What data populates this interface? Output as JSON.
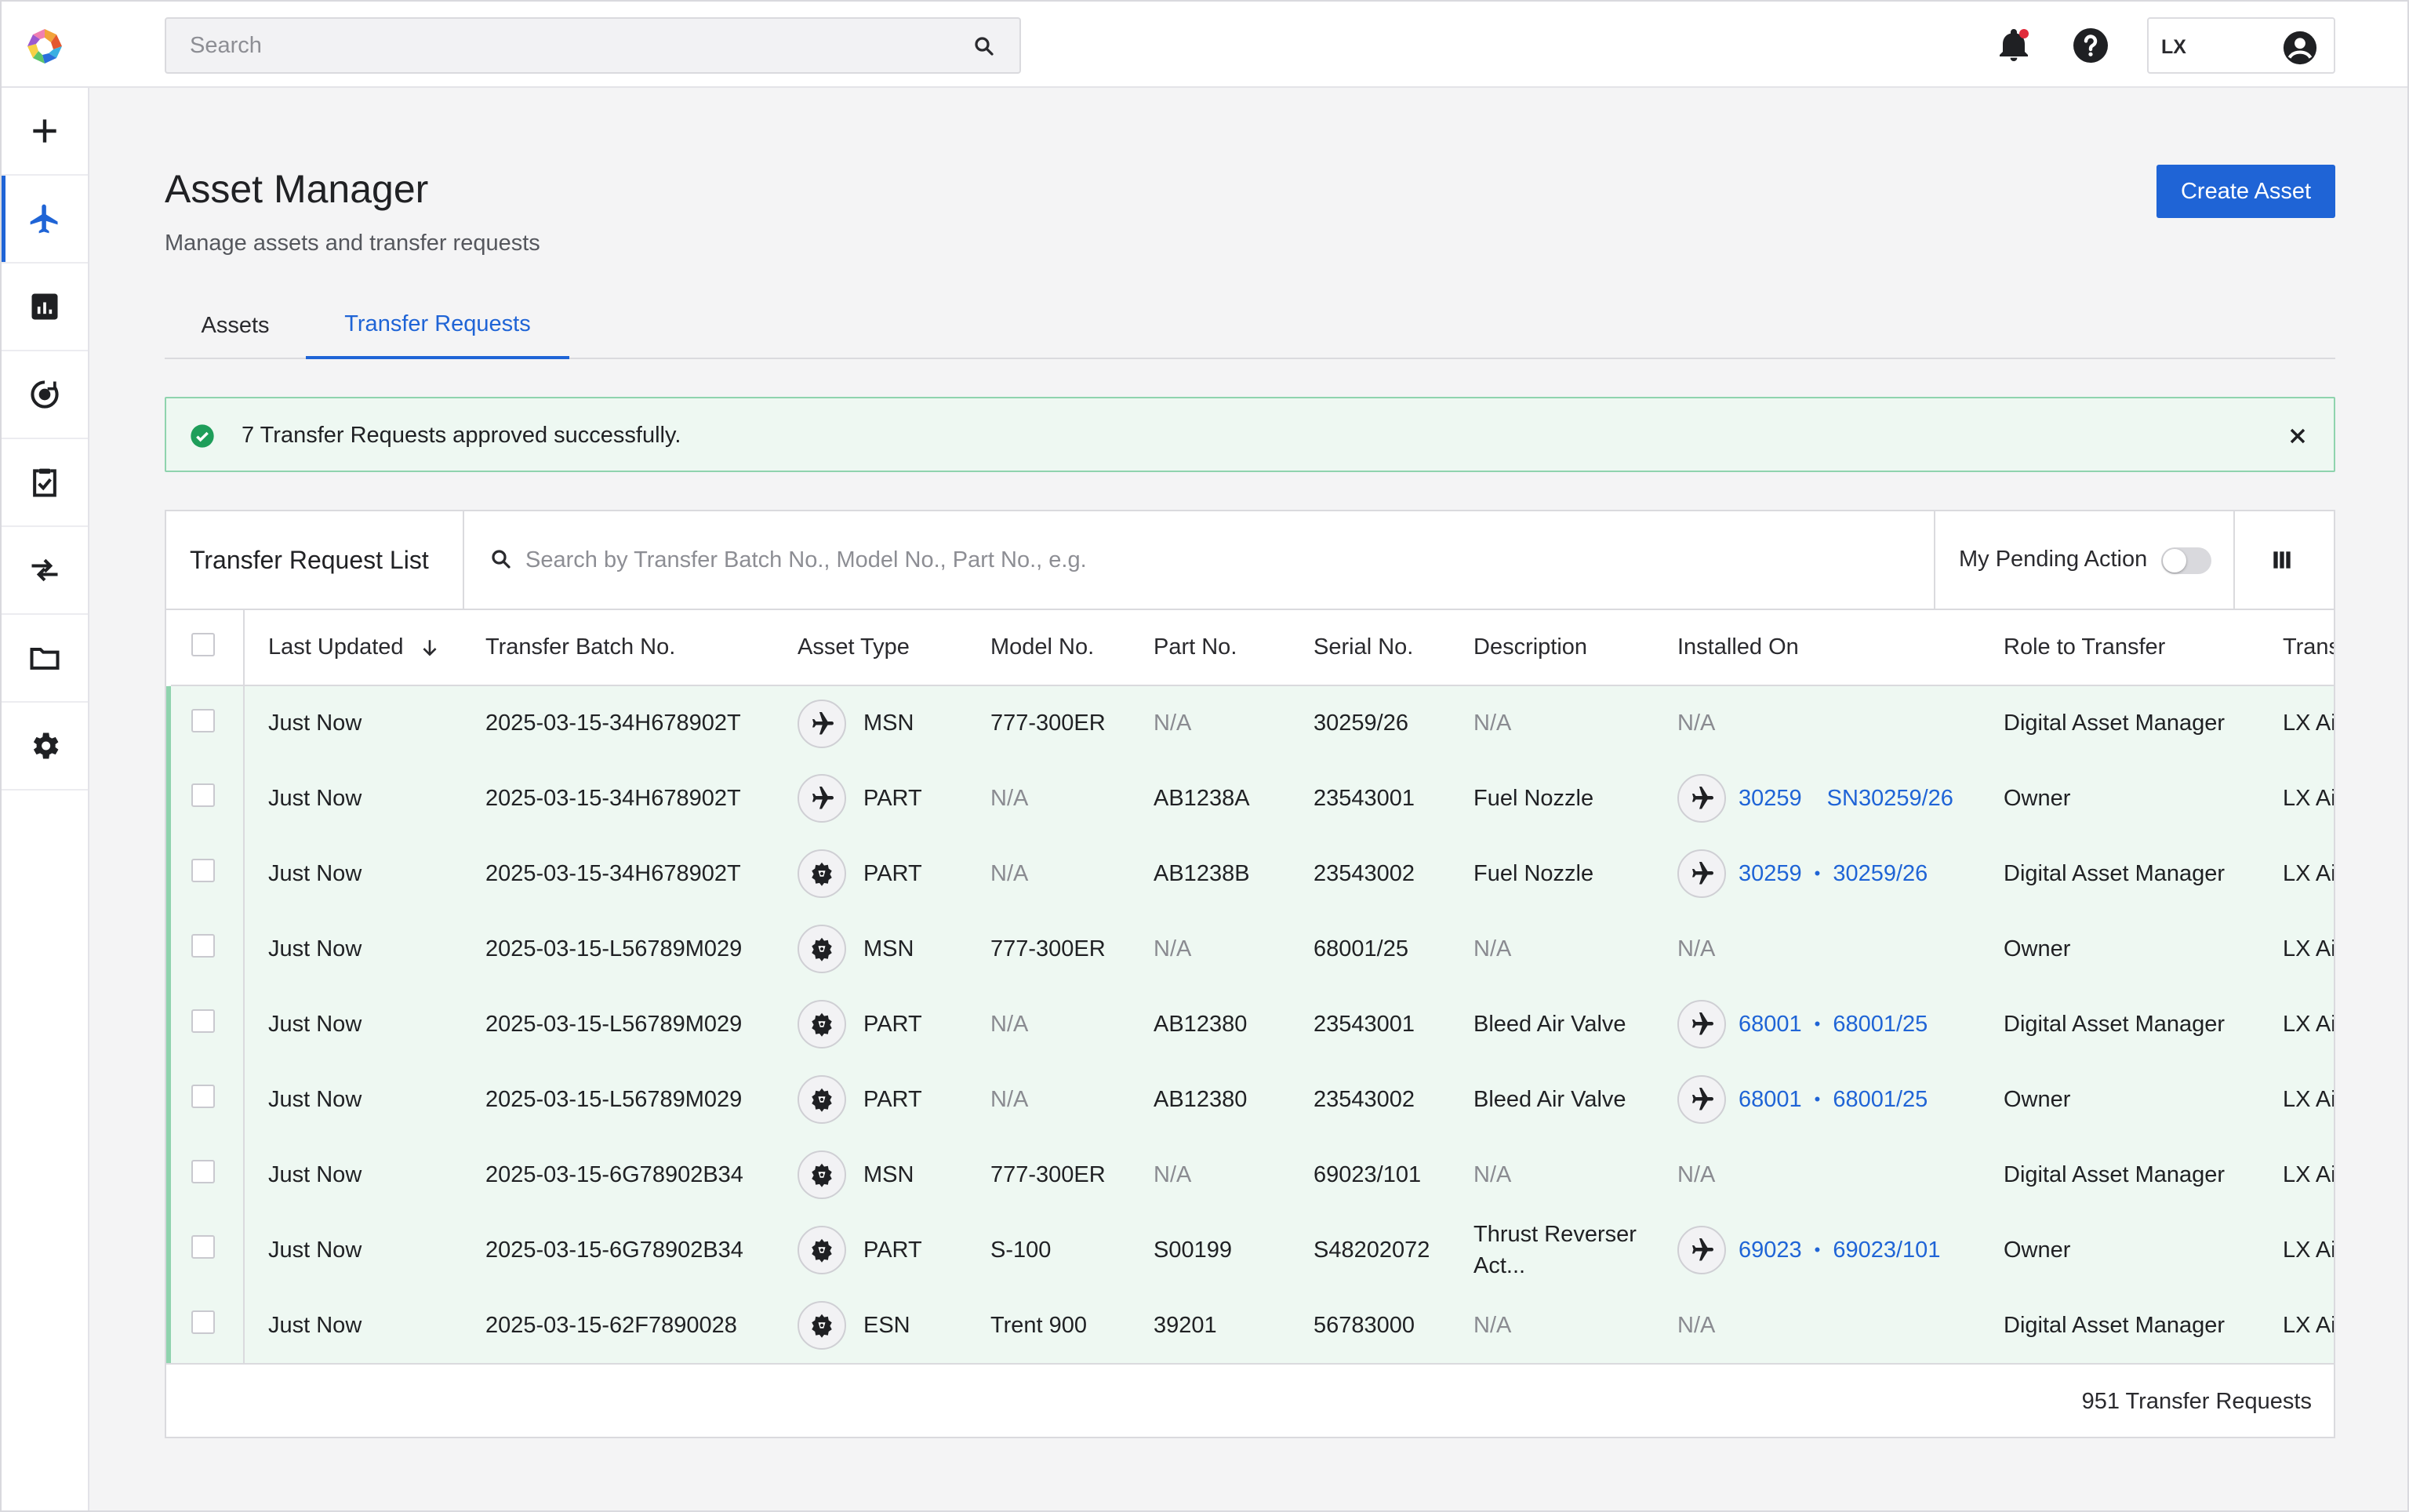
{
  "header": {
    "search_placeholder": "Search",
    "user_initials": "LX"
  },
  "page": {
    "title": "Asset Manager",
    "subtitle": "Manage assets and transfer requests",
    "create_button": "Create Asset"
  },
  "tabs": [
    {
      "label": "Assets",
      "active": false
    },
    {
      "label": "Transfer Requests",
      "active": true
    }
  ],
  "alert": {
    "message": "7 Transfer Requests approved successfully."
  },
  "list": {
    "title": "Transfer Request List",
    "filter_placeholder": "Search by Transfer Batch No., Model No., Part No., e.g.",
    "pending_toggle_label": "My Pending Action",
    "footer_count": "951 Transfer Requests"
  },
  "columns": [
    "Last Updated",
    "Transfer Batch No.",
    "Asset Type",
    "Model No.",
    "Part No.",
    "Serial No.",
    "Description",
    "Installed On",
    "Role to Transfer",
    "Transfer"
  ],
  "rows": [
    {
      "updated": "Just Now",
      "batch": "2025-03-15-34H678902T",
      "icon": "plane-icon",
      "type": "MSN",
      "model": "777-300ER",
      "part": "N/A",
      "serial": "30259/26",
      "desc": "N/A",
      "inst_a": "N/A",
      "inst_sep": "",
      "inst_b": "",
      "role": "Digital Asset Manager",
      "transfer": "LX Airways"
    },
    {
      "updated": "Just Now",
      "batch": "2025-03-15-34H678902T",
      "icon": "plane-icon",
      "type": "PART",
      "model": "N/A",
      "part": "AB1238A",
      "serial": "23543001",
      "desc": "Fuel Nozzle",
      "inst_a": "30259",
      "inst_sep": "",
      "inst_b": "SN30259/26",
      "role": "Owner",
      "transfer": "LX Airways"
    },
    {
      "updated": "Just Now",
      "batch": "2025-03-15-34H678902T",
      "icon": "engine-part-icon",
      "type": "PART",
      "model": "N/A",
      "part": "AB1238B",
      "serial": "23543002",
      "desc": "Fuel Nozzle",
      "inst_a": "30259",
      "inst_sep": "•",
      "inst_b": "30259/26",
      "role": "Digital Asset Manager",
      "transfer": "LX Airways"
    },
    {
      "updated": "Just Now",
      "batch": "2025-03-15-L56789M029",
      "icon": "engine-part-icon",
      "type": "MSN",
      "model": "777-300ER",
      "part": "N/A",
      "serial": "68001/25",
      "desc": "N/A",
      "inst_a": "N/A",
      "inst_sep": "",
      "inst_b": "",
      "role": "Owner",
      "transfer": "LX Airways"
    },
    {
      "updated": "Just Now",
      "batch": "2025-03-15-L56789M029",
      "icon": "engine-part-icon",
      "type": "PART",
      "model": "N/A",
      "part": "AB12380",
      "serial": "23543001",
      "desc": "Bleed Air Valve",
      "inst_a": "68001",
      "inst_sep": "•",
      "inst_b": "68001/25",
      "role": "Digital Asset Manager",
      "transfer": "LX Airways"
    },
    {
      "updated": "Just Now",
      "batch": "2025-03-15-L56789M029",
      "icon": "engine-part-icon",
      "type": "PART",
      "model": "N/A",
      "part": "AB12380",
      "serial": "23543002",
      "desc": "Bleed Air Valve",
      "inst_a": "68001",
      "inst_sep": "•",
      "inst_b": "68001/25",
      "role": "Owner",
      "transfer": "LX Airways"
    },
    {
      "updated": "Just Now",
      "batch": "2025-03-15-6G78902B34",
      "icon": "engine-part-icon",
      "type": "MSN",
      "model": "777-300ER",
      "part": "N/A",
      "serial": "69023/101",
      "desc": "N/A",
      "inst_a": "N/A",
      "inst_sep": "",
      "inst_b": "",
      "role": "Digital Asset Manager",
      "transfer": "LX Airways"
    },
    {
      "updated": "Just Now",
      "batch": "2025-03-15-6G78902B34",
      "icon": "engine-part-icon",
      "type": "PART",
      "model": "S-100",
      "part": "S00199",
      "serial": "S48202072",
      "desc": "Thrust Reverser Act...",
      "inst_a": "69023",
      "inst_sep": "•",
      "inst_b": "69023/101",
      "role": "Owner",
      "transfer": "LX Airways"
    },
    {
      "updated": "Just Now",
      "batch": "2025-03-15-62F7890028",
      "icon": "engine-part-icon",
      "type": "ESN",
      "model": "Trent 900",
      "part": "39201",
      "serial": "56783000",
      "desc": "N/A",
      "inst_a": "N/A",
      "inst_sep": "",
      "inst_b": "",
      "role": "Digital Asset Manager",
      "transfer": "LX Airways"
    }
  ],
  "colors": {
    "accent": "#1f64d6",
    "success_bg": "#eef8f2",
    "success_border": "#8fd3ae",
    "success_icon": "#1e9e5a"
  }
}
